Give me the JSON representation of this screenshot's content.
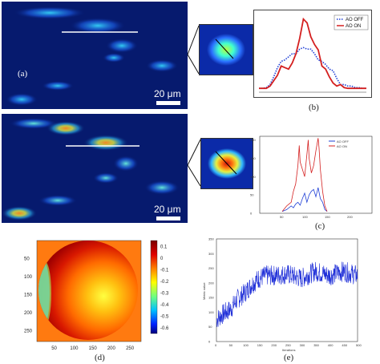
{
  "panel_a": {
    "label": "(a)",
    "scale_label": "20 μm"
  },
  "panel_a2": {
    "scale_label": "20 μm"
  },
  "panel_b": {
    "label": "(b)",
    "legend": [
      "AO OFF",
      "AO ON"
    ],
    "colors": {
      "ao_off": "#1f3fd6",
      "ao_on": "#d42020"
    }
  },
  "panel_c": {
    "label": "(c)",
    "legend": [
      "AO OFF",
      "AO ON"
    ],
    "x_ticks": [
      "50",
      "100",
      "150",
      "200"
    ],
    "y_ticks": [
      "0",
      "50",
      "100",
      "150",
      "200"
    ]
  },
  "panel_d": {
    "label": "(d)",
    "x_ticks": [
      "50",
      "100",
      "150",
      "200",
      "250"
    ],
    "y_ticks": [
      "50",
      "100",
      "150",
      "200",
      "250"
    ],
    "colorbar_ticks": [
      "0.1",
      "0",
      "-0.1",
      "-0.2",
      "-0.3",
      "-0.4",
      "-0.5",
      "-0.6"
    ]
  },
  "panel_e": {
    "label": "(e)",
    "xlabel": "Iterations",
    "ylabel": "Metric value",
    "x_ticks": [
      "0",
      "50",
      "100",
      "150",
      "200",
      "250",
      "300",
      "350",
      "400",
      "450",
      "500"
    ],
    "y_ticks": [
      "0",
      "50",
      "100",
      "150",
      "200",
      "250",
      "300",
      "350"
    ]
  },
  "chart_data": [
    {
      "type": "line",
      "id": "b",
      "x": [
        1,
        2,
        3,
        4,
        5,
        6,
        7,
        8,
        9,
        10,
        11,
        12,
        13,
        14,
        15,
        16,
        17,
        18,
        19,
        20,
        21,
        22,
        23,
        24,
        25,
        26,
        27,
        28,
        29,
        30
      ],
      "series": [
        {
          "name": "AO OFF",
          "values": [
            0.05,
            0.05,
            0.06,
            0.1,
            0.2,
            0.32,
            0.4,
            0.42,
            0.46,
            0.5,
            0.5,
            0.56,
            0.58,
            0.56,
            0.56,
            0.5,
            0.42,
            0.4,
            0.36,
            0.3,
            0.28,
            0.18,
            0.1,
            0.1,
            0.08,
            0.08,
            0.06,
            0.06,
            0.05,
            0.05
          ]
        },
        {
          "name": "AO ON",
          "values": [
            0.05,
            0.05,
            0.05,
            0.08,
            0.15,
            0.22,
            0.34,
            0.32,
            0.3,
            0.38,
            0.5,
            0.7,
            0.95,
            0.9,
            0.72,
            0.62,
            0.55,
            0.34,
            0.3,
            0.2,
            0.12,
            0.08,
            0.1,
            0.06,
            0.05,
            0.05,
            0.05,
            0.05,
            0.05,
            0.05
          ]
        }
      ]
    },
    {
      "type": "line",
      "id": "c",
      "xlim": [
        0,
        250
      ],
      "ylim": [
        0,
        210
      ],
      "series": [
        {
          "name": "AO OFF",
          "x": [
            50,
            60,
            70,
            75,
            80,
            85,
            90,
            95,
            100,
            105,
            110,
            115,
            120,
            125,
            130,
            135,
            140,
            145,
            150
          ],
          "values": [
            5,
            10,
            20,
            15,
            25,
            30,
            22,
            40,
            55,
            30,
            50,
            60,
            65,
            45,
            70,
            40,
            30,
            10,
            5
          ]
        },
        {
          "name": "AO ON",
          "x": [
            50,
            60,
            70,
            75,
            80,
            85,
            88,
            90,
            95,
            100,
            105,
            108,
            110,
            115,
            120,
            125,
            130,
            132,
            135,
            140,
            145,
            150
          ],
          "values": [
            5,
            20,
            30,
            60,
            80,
            130,
            185,
            140,
            120,
            100,
            160,
            200,
            150,
            110,
            130,
            170,
            205,
            180,
            120,
            60,
            20,
            5
          ]
        }
      ]
    },
    {
      "type": "heatmap",
      "id": "d",
      "xlim": [
        0,
        280
      ],
      "ylim": [
        0,
        280
      ],
      "colorbar_range": [
        -0.65,
        0.15
      ]
    },
    {
      "type": "line",
      "id": "e",
      "xlabel": "Iterations",
      "ylabel": "Metric value",
      "xlim": [
        0,
        500
      ],
      "ylim": [
        0,
        350
      ],
      "series": [
        {
          "x": [
            0,
            25,
            50,
            75,
            100,
            125,
            150,
            175,
            200,
            250,
            300,
            350,
            400,
            450,
            500
          ],
          "values": [
            75,
            95,
            110,
            145,
            165,
            195,
            215,
            225,
            225,
            230,
            215,
            240,
            225,
            240,
            225
          ]
        }
      ]
    }
  ]
}
